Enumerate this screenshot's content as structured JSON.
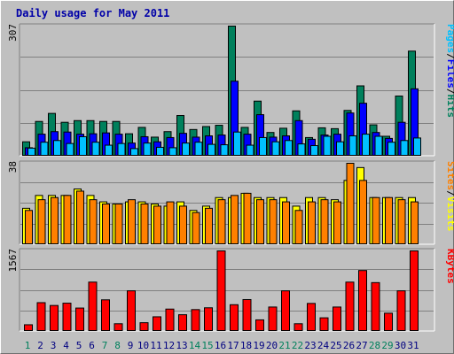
{
  "title": "Daily usage for May 2011",
  "colors": {
    "hits": "#00805c",
    "files": "#0000ff",
    "pages": "#00c0ff",
    "visits": "#ffff00",
    "sites": "#ff8000",
    "kbytes": "#ff0000",
    "weekend_label": "#00805c",
    "weekday_label": "#000080"
  },
  "chart_data": [
    {
      "type": "bar",
      "panel": "hits-files-pages",
      "ymax_label": "307",
      "ylim": [
        0,
        307
      ],
      "legend": [
        "Pages",
        "/",
        "Files",
        "/",
        "Hits"
      ],
      "categories": [
        "1",
        "2",
        "3",
        "4",
        "5",
        "6",
        "7",
        "8",
        "9",
        "10",
        "11",
        "12",
        "13",
        "14",
        "15",
        "16",
        "17",
        "18",
        "19",
        "20",
        "21",
        "22",
        "23",
        "24",
        "25",
        "26",
        "27",
        "28",
        "29",
        "30",
        "31"
      ],
      "weekend": [
        true,
        false,
        false,
        false,
        false,
        false,
        true,
        true,
        false,
        false,
        false,
        false,
        false,
        true,
        true,
        false,
        false,
        false,
        false,
        false,
        true,
        true,
        false,
        false,
        false,
        false,
        false,
        true,
        true,
        false,
        false
      ],
      "series": [
        {
          "name": "Hits",
          "values": [
            34,
            82,
            101,
            80,
            84,
            84,
            82,
            82,
            53,
            68,
            45,
            58,
            96,
            63,
            70,
            73,
            307,
            68,
            130,
            56,
            66,
            107,
            44,
            67,
            65,
            108,
            166,
            74,
            47,
            142,
            248
          ]
        },
        {
          "name": "Files",
          "values": [
            20,
            52,
            58,
            57,
            52,
            53,
            55,
            52,
            31,
            46,
            34,
            44,
            54,
            45,
            48,
            50,
            177,
            52,
            98,
            45,
            48,
            84,
            40,
            50,
            52,
            102,
            125,
            56,
            42,
            80,
            159
          ]
        },
        {
          "name": "Pages",
          "values": [
            19,
            33,
            37,
            30,
            46,
            33,
            26,
            30,
            18,
            31,
            21,
            20,
            31,
            33,
            28,
            27,
            57,
            26,
            44,
            34,
            37,
            29,
            25,
            47,
            34,
            48,
            52,
            47,
            33,
            37,
            43
          ]
        }
      ]
    },
    {
      "type": "bar",
      "panel": "visits-sites",
      "ymax_label": "38",
      "ylim": [
        0,
        38
      ],
      "legend": [
        "Sites",
        "/",
        "Visits"
      ],
      "categories": [
        "1",
        "2",
        "3",
        "4",
        "5",
        "6",
        "7",
        "8",
        "9",
        "10",
        "11",
        "12",
        "13",
        "14",
        "15",
        "16",
        "17",
        "18",
        "19",
        "20",
        "21",
        "22",
        "23",
        "24",
        "25",
        "26",
        "27",
        "28",
        "29",
        "30",
        "31"
      ],
      "series": [
        {
          "name": "Visits",
          "values": [
            17,
            23,
            23,
            23,
            26,
            23,
            20,
            19,
            20,
            20,
            19,
            18,
            20,
            16,
            18,
            22,
            22,
            24,
            22,
            22,
            22,
            18,
            22,
            22,
            21,
            30,
            36,
            22,
            22,
            22,
            22
          ]
        },
        {
          "name": "Sites",
          "values": [
            16,
            21,
            22,
            23,
            25,
            21,
            19,
            19,
            21,
            19,
            18,
            20,
            18,
            15,
            17,
            21,
            23,
            24,
            21,
            21,
            20,
            16,
            20,
            21,
            20,
            38,
            30,
            22,
            22,
            21,
            20
          ]
        }
      ]
    },
    {
      "type": "bar",
      "panel": "kbytes",
      "ymax_label": "1567",
      "ylim": [
        0,
        1567
      ],
      "legend": [
        "KBytes"
      ],
      "categories": [
        "1",
        "2",
        "3",
        "4",
        "5",
        "6",
        "7",
        "8",
        "9",
        "10",
        "11",
        "12",
        "13",
        "14",
        "15",
        "16",
        "17",
        "18",
        "19",
        "20",
        "21",
        "22",
        "23",
        "24",
        "25",
        "26",
        "27",
        "28",
        "29",
        "30",
        "31"
      ],
      "series": [
        {
          "name": "KBytes",
          "values": [
            130,
            560,
            505,
            550,
            455,
            960,
            615,
            150,
            790,
            170,
            285,
            435,
            325,
            425,
            460,
            1567,
            520,
            620,
            225,
            475,
            790,
            150,
            545,
            265,
            475,
            960,
            1185,
            950,
            355,
            790,
            1567
          ]
        }
      ]
    }
  ]
}
